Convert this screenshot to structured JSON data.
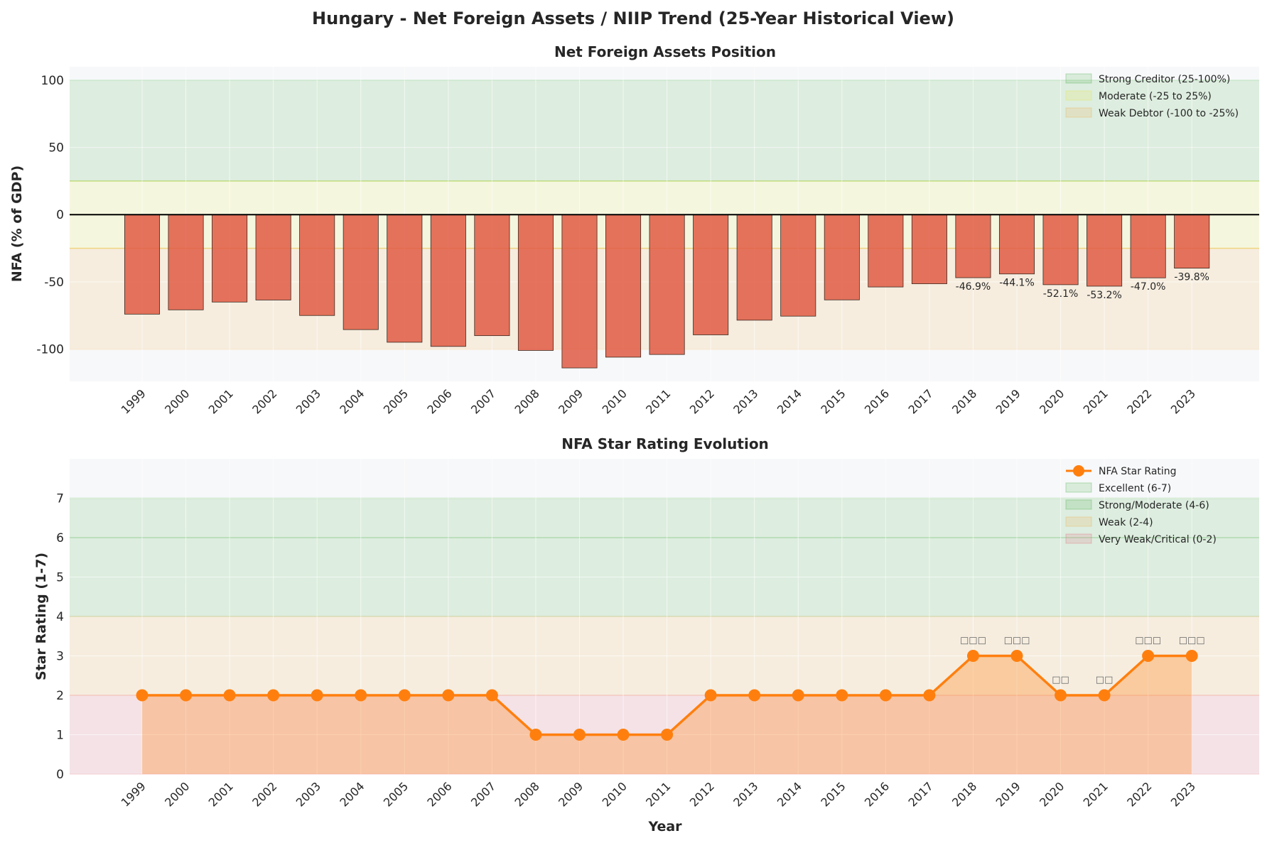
{
  "title": "Hungary - Net Foreign Assets / NIIP Trend (25-Year Historical View)",
  "colors": {
    "bar": "#e05a44",
    "plot_bg": "#f7f8fa",
    "zone_green": "#2ca02c",
    "zone_yellow": "#e6e62a",
    "zone_orange": "#f0a030",
    "zone_red": "#e0506a",
    "line": "#ff7f0e",
    "fill": "#ff7f0e"
  },
  "chart_data": [
    {
      "type": "bar",
      "title": "Net Foreign Assets Position",
      "xlabel": "",
      "ylabel": "NFA (% of GDP)",
      "ylim": [
        -124,
        110
      ],
      "yticks": [
        -100,
        -50,
        0,
        50,
        100
      ],
      "grid": true,
      "legend_position": "top-right",
      "categories": [
        "1999",
        "2000",
        "2001",
        "2002",
        "2003",
        "2004",
        "2005",
        "2006",
        "2007",
        "2008",
        "2009",
        "2010",
        "2011",
        "2012",
        "2013",
        "2014",
        "2015",
        "2016",
        "2017",
        "2018",
        "2019",
        "2020",
        "2021",
        "2022",
        "2023"
      ],
      "values": [
        -74.0,
        -70.8,
        -65.0,
        -63.5,
        -75.0,
        -85.5,
        -94.9,
        -98.0,
        -90.0,
        -101.0,
        -114.0,
        -106.0,
        -104.0,
        -89.4,
        -78.5,
        -75.5,
        -63.4,
        -53.8,
        -51.4,
        -46.9,
        -44.1,
        -52.1,
        -53.2,
        -47.0,
        -39.8
      ],
      "data_labels": {
        "2018": "-46.9%",
        "2019": "-44.1%",
        "2020": "-52.1%",
        "2021": "-53.2%",
        "2022": "-47.0%",
        "2023": "-39.8%"
      },
      "zones": [
        {
          "name": "Strong Creditor (25-100%)",
          "from": 25,
          "to": 100,
          "color": "#2ca02c"
        },
        {
          "name": "Moderate (-25 to 25%)",
          "from": -25,
          "to": 25,
          "color": "#e6e62a"
        },
        {
          "name": "Weak Debtor (-100 to -25%)",
          "from": -100,
          "to": -25,
          "color": "#f0a030"
        }
      ]
    },
    {
      "type": "line",
      "title": "NFA Star Rating Evolution",
      "xlabel": "Year",
      "ylabel": "Star Rating (1-7)",
      "ylim": [
        0,
        8
      ],
      "yticks": [
        0,
        1,
        2,
        3,
        4,
        5,
        6,
        7
      ],
      "grid": true,
      "legend_position": "top-right",
      "categories": [
        "1999",
        "2000",
        "2001",
        "2002",
        "2003",
        "2004",
        "2005",
        "2006",
        "2007",
        "2008",
        "2009",
        "2010",
        "2011",
        "2012",
        "2013",
        "2014",
        "2015",
        "2016",
        "2017",
        "2018",
        "2019",
        "2020",
        "2021",
        "2022",
        "2023"
      ],
      "series": [
        {
          "name": "NFA Star Rating",
          "values": [
            2,
            2,
            2,
            2,
            2,
            2,
            2,
            2,
            2,
            1,
            1,
            1,
            1,
            2,
            2,
            2,
            2,
            2,
            2,
            3,
            3,
            2,
            2,
            3,
            3
          ]
        }
      ],
      "point_labels": {
        "2018": "□□□",
        "2019": "□□□",
        "2020": "□□",
        "2021": "□□",
        "2022": "□□□",
        "2023": "□□□"
      },
      "zones": [
        {
          "name": "Excellent (6-7)",
          "from": 6,
          "to": 7,
          "color": "#2ca02c"
        },
        {
          "name": "Strong/Moderate (4-6)",
          "from": 4,
          "to": 6,
          "color": "#2ca02c"
        },
        {
          "name": "Weak (2-4)",
          "from": 2,
          "to": 4,
          "color": "#f0a030"
        },
        {
          "name": "Very Weak/Critical (0-2)",
          "from": 0,
          "to": 2,
          "color": "#e0506a"
        }
      ]
    }
  ]
}
